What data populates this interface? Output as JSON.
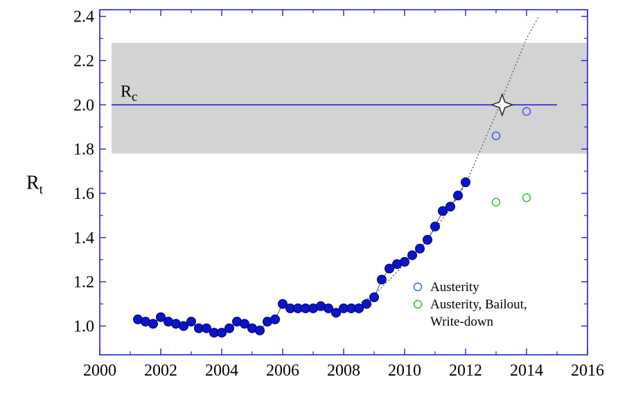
{
  "chart_data": {
    "type": "scatter",
    "ylabel": {
      "main": "R",
      "sub": "t"
    },
    "xlim": [
      2000,
      2016
    ],
    "ylim": [
      0.87,
      2.43
    ],
    "xticks": [
      2000,
      2002,
      2004,
      2006,
      2008,
      2010,
      2012,
      2014,
      2016
    ],
    "yticks": [
      1.0,
      1.2,
      1.4,
      1.6,
      1.8,
      2.0,
      2.2,
      2.4
    ],
    "ytick_labels": [
      "1.0",
      "1.2",
      "1.4",
      "1.6",
      "1.8",
      "2.0",
      "2.2",
      "2.4"
    ],
    "band": {
      "y_low": 1.78,
      "y_high": 2.28,
      "color": "#d3d3d3"
    },
    "critical_line": {
      "y": 2.0,
      "x_start": 2000,
      "x_end": 2015,
      "label_main": "R",
      "label_sub": "c",
      "color": "#1f1fd6"
    },
    "critical_marker": {
      "x": 2013.2,
      "y": 2.0
    },
    "series": [
      {
        "kind": "observed",
        "color": "#0a14c8",
        "x": [
          2001.25,
          2001.5,
          2001.75,
          2002.0,
          2002.25,
          2002.5,
          2002.75,
          2003.0,
          2003.25,
          2003.5,
          2003.75,
          2004.0,
          2004.25,
          2004.5,
          2004.75,
          2005.0,
          2005.25,
          2005.5,
          2005.75,
          2006.0,
          2006.25,
          2006.5,
          2006.75,
          2007.0,
          2007.25,
          2007.5,
          2007.75,
          2008.0,
          2008.25,
          2008.5,
          2008.75,
          2009.0,
          2009.25,
          2009.5,
          2009.75,
          2010.0,
          2010.25,
          2010.5,
          2010.75,
          2011.0,
          2011.25,
          2011.5,
          2011.75,
          2012.0
        ],
        "y": [
          1.03,
          1.02,
          1.01,
          1.04,
          1.02,
          1.01,
          1.0,
          1.02,
          0.99,
          0.99,
          0.97,
          0.97,
          0.99,
          1.02,
          1.01,
          0.99,
          0.98,
          1.02,
          1.03,
          1.1,
          1.08,
          1.08,
          1.08,
          1.08,
          1.09,
          1.08,
          1.06,
          1.08,
          1.08,
          1.08,
          1.1,
          1.13,
          1.21,
          1.26,
          1.28,
          1.29,
          1.32,
          1.35,
          1.39,
          1.45,
          1.52,
          1.54,
          1.59,
          1.65
        ]
      },
      {
        "name": "Austerity",
        "kind": "projection",
        "color": "#3a5bf0",
        "x": [
          2013.0,
          2014.0
        ],
        "y": [
          1.86,
          1.97
        ]
      },
      {
        "name": "Austerity, Bailout, Write-down",
        "kind": "projection",
        "color": "#33bb33",
        "x": [
          2013.0,
          2014.0
        ],
        "y": [
          1.56,
          1.58
        ]
      }
    ],
    "fit_curve": {
      "style": "dotted",
      "color": "#555555",
      "x": [
        2007.6,
        2008.0,
        2008.5,
        2009.0,
        2009.5,
        2010.0,
        2010.5,
        2011.0,
        2011.5,
        2012.0,
        2012.5,
        2013.0,
        2013.5,
        2014.0,
        2014.4
      ],
      "y": [
        1.07,
        1.08,
        1.1,
        1.14,
        1.21,
        1.28,
        1.35,
        1.44,
        1.53,
        1.64,
        1.8,
        1.96,
        2.13,
        2.3,
        2.4
      ]
    },
    "legend": {
      "placement": "lower-right",
      "entries": [
        {
          "label": "Austerity",
          "color": "#3a5bf0"
        },
        {
          "label_lines": [
            "Austerity, Bailout,",
            "Write-down"
          ],
          "color": "#33bb33"
        }
      ]
    },
    "frame_color": "#1f1fd6",
    "grid": false
  }
}
